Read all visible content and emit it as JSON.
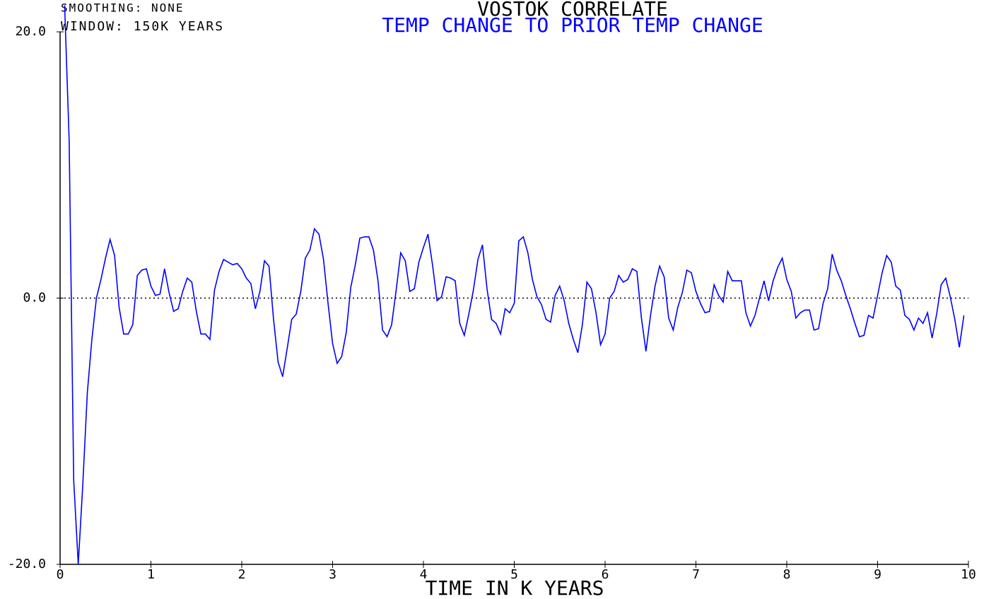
{
  "chart_data": {
    "type": "line",
    "title": "VOSTOK CORRELATE",
    "subtitle": "TEMP CHANGE TO PRIOR TEMP CHANGE",
    "annotations": [
      "SMOOTHING: NONE",
      "WINDOW: 150K YEARS"
    ],
    "x_label": "TIME IN K YEARS",
    "xlim": [
      0,
      10
    ],
    "xticks": [
      0,
      1,
      2,
      3,
      4,
      5,
      6,
      7,
      8,
      9,
      10
    ],
    "ylim": [
      -20,
      20
    ],
    "yticks": [
      {
        "value": -20,
        "label": "-20.0"
      },
      {
        "value": 0,
        "label": "0.0"
      },
      {
        "value": 20,
        "label": "20.0"
      }
    ],
    "zero_line": true,
    "title_color": "#000000",
    "subtitle_color": "#0000ff",
    "series": [
      {
        "color": "#0000ff",
        "x": [
          0.05,
          0.1,
          0.15,
          0.2,
          0.25,
          0.3,
          0.35,
          0.4,
          0.45,
          0.5,
          0.55,
          0.6,
          0.65,
          0.7,
          0.75,
          0.8,
          0.85,
          0.9,
          0.95,
          1,
          1.05,
          1.1,
          1.15,
          1.2,
          1.25,
          1.3,
          1.35,
          1.4,
          1.45,
          1.5,
          1.55,
          1.6,
          1.65,
          1.7,
          1.75,
          1.8,
          1.85,
          1.9,
          1.95,
          2,
          2.05,
          2.1,
          2.15,
          2.2,
          2.25,
          2.3,
          2.35,
          2.4,
          2.45,
          2.5,
          2.55,
          2.6,
          2.65,
          2.7,
          2.75,
          2.8,
          2.85,
          2.9,
          2.95,
          3,
          3.05,
          3.1,
          3.15,
          3.2,
          3.25,
          3.3,
          3.35,
          3.4,
          3.45,
          3.5,
          3.55,
          3.6,
          3.65,
          3.7,
          3.75,
          3.8,
          3.85,
          3.9,
          3.95,
          4,
          4.05,
          4.1,
          4.15,
          4.2,
          4.25,
          4.3,
          4.35,
          4.4,
          4.45,
          4.5,
          4.55,
          4.6,
          4.65,
          4.7,
          4.75,
          4.8,
          4.85,
          4.9,
          4.95,
          5,
          5.05,
          5.1,
          5.15,
          5.2,
          5.25,
          5.3,
          5.35,
          5.4,
          5.45,
          5.5,
          5.55,
          5.6,
          5.65,
          5.7,
          5.75,
          5.8,
          5.85,
          5.9,
          5.95,
          6,
          6.05,
          6.1,
          6.15,
          6.2,
          6.25,
          6.3,
          6.35,
          6.4,
          6.45,
          6.5,
          6.55,
          6.6,
          6.65,
          6.7,
          6.75,
          6.8,
          6.85,
          6.9,
          6.95,
          7,
          7.05,
          7.1,
          7.15,
          7.2,
          7.25,
          7.3,
          7.35,
          7.4,
          7.45,
          7.5,
          7.55,
          7.6,
          7.65,
          7.7,
          7.75,
          7.8,
          7.85,
          7.9,
          7.95,
          8,
          8.05,
          8.1,
          8.15,
          8.2,
          8.25,
          8.3,
          8.35,
          8.4,
          8.45,
          8.5,
          8.55,
          8.6,
          8.65,
          8.7,
          8.75,
          8.8,
          8.85,
          8.9,
          8.95,
          9,
          9.05,
          9.1,
          9.15,
          9.2,
          9.25,
          9.3,
          9.35,
          9.4,
          9.45,
          9.5,
          9.55,
          9.6,
          9.65,
          9.7,
          9.75,
          9.8,
          9.85,
          9.9,
          9.95
        ],
        "values": [
          22,
          11.8,
          -13.7,
          -20,
          -14,
          -7.1,
          -3.1,
          0,
          1.4,
          3.0,
          4.4,
          3.2,
          -0.7,
          -2.7,
          -2.7,
          -2.0,
          1.7,
          2.1,
          2.2,
          0.9,
          0.2,
          0.3,
          2.2,
          0.4,
          -1.0,
          -0.8,
          0.5,
          1.5,
          1.2,
          -1.0,
          -2.7,
          -2.7,
          -3.1,
          0.6,
          2.0,
          2.9,
          2.7,
          2.5,
          2.6,
          2.2,
          1.5,
          1.1,
          -0.8,
          0.5,
          2.8,
          2.4,
          -1.6,
          -4.8,
          -5.9,
          -3.8,
          -1.6,
          -1.2,
          0.5,
          3.0,
          3.6,
          5.2,
          4.8,
          2.9,
          -0.4,
          -3.4,
          -4.9,
          -4.4,
          -2.6,
          0.8,
          2.5,
          4.5,
          4.6,
          4.6,
          3.6,
          1.3,
          -2.4,
          -2.9,
          -2.0,
          0.6,
          3.4,
          2.8,
          0.5,
          0.7,
          2.7,
          3.8,
          4.8,
          2.5,
          -0.2,
          0.1,
          1.6,
          1.5,
          1.3,
          -1.9,
          -2.8,
          -1.2,
          0.6,
          2.9,
          4.0,
          0.7,
          -1.6,
          -1.9,
          -2.7,
          -0.8,
          -1.1,
          -0.4,
          4.3,
          4.6,
          3.4,
          1.4,
          0.1,
          -0.5,
          -1.6,
          -1.8,
          0.2,
          0.9,
          -0.2,
          -1.9,
          -3.1,
          -4.1,
          -2.0,
          1.2,
          0.7,
          -1.1,
          -3.5,
          -2.7,
          0,
          0.5,
          1.7,
          1.2,
          1.4,
          2.2,
          2.0,
          -1.5,
          -4.0,
          -1.3,
          0.9,
          2.4,
          1.6,
          -1.5,
          -2.4,
          -0.7,
          0.4,
          2.1,
          1.9,
          0.5,
          -0.4,
          -1.1,
          -1.0,
          1.0,
          0.2,
          -0.3,
          2.0,
          1.3,
          1.3,
          1.3,
          -1.1,
          -2.1,
          -1.3,
          0,
          1.3,
          -0.2,
          1.3,
          2.3,
          3.0,
          1.4,
          0.5,
          -1.5,
          -1.1,
          -0.9,
          -0.9,
          -2.4,
          -2.3,
          -0.4,
          0.7,
          3.3,
          2.1,
          1.3,
          0.2,
          -0.8,
          -1.9,
          -2.9,
          -2.8,
          -1.3,
          -1.5,
          0.2,
          1.9,
          3.2,
          2.7,
          0.9,
          0.6,
          -1.3,
          -1.6,
          -2.4,
          -1.5,
          -1.9,
          -1.1,
          -3.0,
          -1.2,
          1.0,
          1.5,
          0.1,
          -1.6,
          -3.7,
          -1.3
        ]
      }
    ]
  }
}
